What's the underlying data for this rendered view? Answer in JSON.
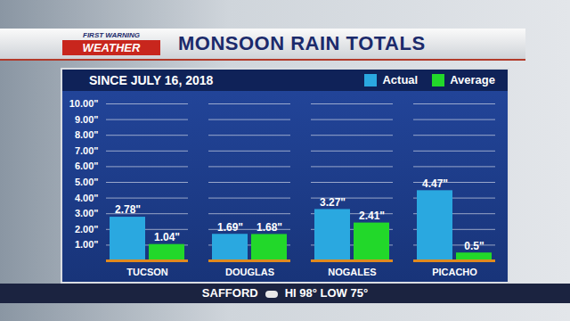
{
  "chart_data": {
    "type": "bar",
    "title": "MONSOON RAIN TOTALS",
    "subtitle": "SINCE JULY 16, 2018",
    "categories": [
      "TUCSON",
      "DOUGLAS",
      "NOGALES",
      "PICACHO"
    ],
    "series": [
      {
        "name": "Actual",
        "color": "#2aa8e0",
        "values": [
          2.78,
          1.69,
          3.27,
          4.47
        ],
        "value_labels": [
          "2.78\"",
          "1.69\"",
          "3.27\"",
          "4.47\""
        ]
      },
      {
        "name": "Average",
        "color": "#22d82a",
        "values": [
          1.04,
          1.68,
          2.41,
          0.5
        ],
        "value_labels": [
          "1.04\"",
          "1.68\"",
          "2.41\"",
          "0.5\""
        ]
      }
    ],
    "ylim": [
      0,
      10
    ],
    "yticks": [
      {
        "value": 1,
        "label": "1.00\""
      },
      {
        "value": 2,
        "label": "2.00\""
      },
      {
        "value": 3,
        "label": "3.00\""
      },
      {
        "value": 4,
        "label": "4.00\""
      },
      {
        "value": 5,
        "label": "5.00\""
      },
      {
        "value": 6,
        "label": "6.00\""
      },
      {
        "value": 7,
        "label": "7.00\""
      },
      {
        "value": 8,
        "label": "8.00\""
      },
      {
        "value": 9,
        "label": "9.00\""
      },
      {
        "value": 10,
        "label": "10.00\""
      }
    ],
    "grid": true,
    "legend": "top-right",
    "data_labels": true,
    "annotations": [
      "FIRST WARNING",
      "WEATHER",
      "SAFFORD",
      "HI 98° LOW 75°"
    ]
  }
}
